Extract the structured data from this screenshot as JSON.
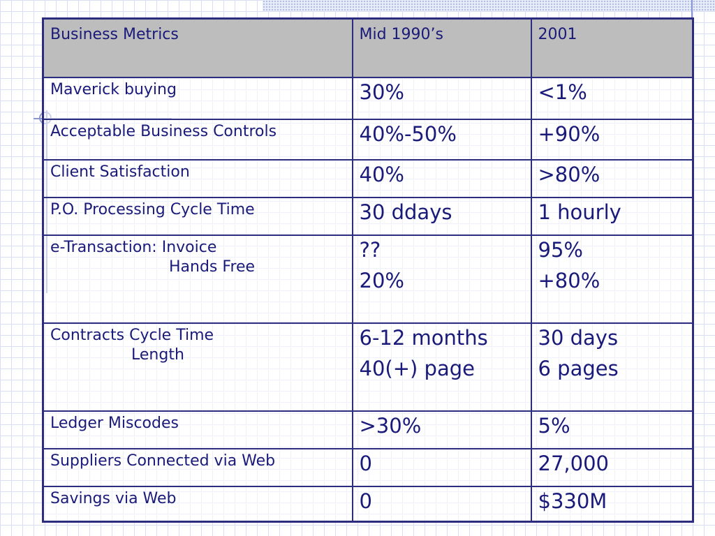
{
  "table": {
    "headers": [
      "Business Metrics",
      "Mid 1990’s",
      "2001"
    ],
    "rows": [
      {
        "metric": [
          "Maverick buying"
        ],
        "mid1990s": [
          "30%"
        ],
        "y2001": [
          "<1%"
        ]
      },
      {
        "metric": [
          "Acceptable Business Controls"
        ],
        "mid1990s": [
          "40%-50%"
        ],
        "y2001": [
          "+90%"
        ]
      },
      {
        "metric": [
          "Client Satisfaction"
        ],
        "mid1990s": [
          "40%"
        ],
        "y2001": [
          ">80%"
        ]
      },
      {
        "metric": [
          "P.O. Processing Cycle Time"
        ],
        "mid1990s": [
          "30 ddays"
        ],
        "y2001": [
          "1 hourly"
        ]
      },
      {
        "metric": [
          "e-Transaction: Invoice",
          "Hands Free"
        ],
        "mid1990s": [
          "??",
          "20%"
        ],
        "y2001": [
          "95%",
          "+80%"
        ]
      },
      {
        "metric": [
          "Contracts Cycle Time",
          "Length"
        ],
        "mid1990s": [
          "6-12 months",
          "40(+) page"
        ],
        "y2001": [
          "30 days",
          "6 pages"
        ]
      },
      {
        "metric": [
          "Ledger Miscodes"
        ],
        "mid1990s": [
          ">30%"
        ],
        "y2001": [
          "5%"
        ]
      },
      {
        "metric": [
          "Suppliers Connected via Web"
        ],
        "mid1990s": [
          "0"
        ],
        "y2001": [
          "27,000"
        ]
      },
      {
        "metric": [
          "Savings via Web"
        ],
        "mid1990s": [
          "0"
        ],
        "y2001": [
          "$330M"
        ]
      }
    ]
  },
  "colors": {
    "text": "#1a1a7a",
    "border": "#2d2d80",
    "header_bg": "#bdbdbd",
    "grid": "#d9def4"
  }
}
